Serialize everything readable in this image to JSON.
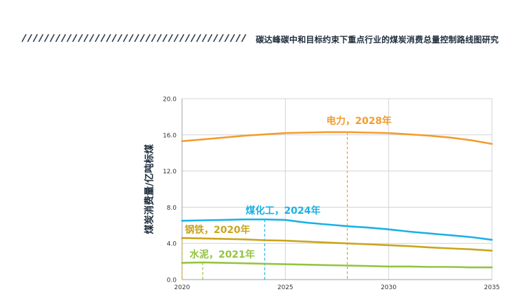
{
  "header": {
    "title": "碳达峰碳中和目标约束下重点行业的煤炭消费总量控制路线图研究"
  },
  "colors": {
    "power": "#f39c2e",
    "coal_chemical": "#1ab0e6",
    "steel": "#c9a51e",
    "cement": "#93c43f",
    "grid": "#cfd3d6",
    "title_dark": "#1f2d3d",
    "stripe": "#2f3e4c"
  },
  "chart_data": {
    "type": "line",
    "title": "",
    "xlabel": "",
    "ylabel": "煤炭消费量/亿吨标煤",
    "xlim": [
      2020,
      2035
    ],
    "ylim": [
      0,
      20
    ],
    "x_ticks": [
      "2020",
      "2025",
      "2030",
      "2035"
    ],
    "y_ticks": [
      "0.0",
      "4.0",
      "8.0",
      "12.0",
      "16.0",
      "20.0"
    ],
    "grid": true,
    "series": [
      {
        "key": "power",
        "peak_label": "电力，2028年",
        "peak_year": 2028,
        "x": [
          2020,
          2021,
          2022,
          2023,
          2024,
          2025,
          2026,
          2027,
          2028,
          2029,
          2030,
          2031,
          2032,
          2033,
          2034,
          2035
        ],
        "y": [
          15.3,
          15.5,
          15.7,
          15.9,
          16.05,
          16.2,
          16.25,
          16.3,
          16.3,
          16.25,
          16.2,
          16.05,
          15.9,
          15.7,
          15.4,
          15.0
        ]
      },
      {
        "key": "coal_chemical",
        "peak_label": "煤化工，2024年",
        "peak_year": 2024,
        "x": [
          2020,
          2021,
          2022,
          2023,
          2024,
          2025,
          2026,
          2027,
          2028,
          2029,
          2030,
          2031,
          2032,
          2033,
          2034,
          2035
        ],
        "y": [
          6.5,
          6.55,
          6.6,
          6.65,
          6.65,
          6.6,
          6.3,
          6.1,
          5.9,
          5.75,
          5.55,
          5.3,
          5.1,
          4.9,
          4.7,
          4.4
        ]
      },
      {
        "key": "steel",
        "peak_label": "钢铁，2020年",
        "peak_year": 2020,
        "x": [
          2020,
          2021,
          2022,
          2023,
          2024,
          2025,
          2026,
          2027,
          2028,
          2029,
          2030,
          2031,
          2032,
          2033,
          2034,
          2035
        ],
        "y": [
          4.6,
          4.55,
          4.5,
          4.45,
          4.35,
          4.3,
          4.2,
          4.1,
          4.0,
          3.9,
          3.8,
          3.7,
          3.55,
          3.45,
          3.35,
          3.2
        ]
      },
      {
        "key": "cement",
        "peak_label": "水泥，2021年",
        "peak_year": 2021,
        "x": [
          2020,
          2021,
          2022,
          2023,
          2024,
          2025,
          2026,
          2027,
          2028,
          2029,
          2030,
          2031,
          2032,
          2033,
          2034,
          2035
        ],
        "y": [
          1.85,
          1.9,
          1.85,
          1.8,
          1.75,
          1.7,
          1.65,
          1.6,
          1.55,
          1.5,
          1.45,
          1.45,
          1.4,
          1.4,
          1.35,
          1.35
        ]
      }
    ]
  }
}
